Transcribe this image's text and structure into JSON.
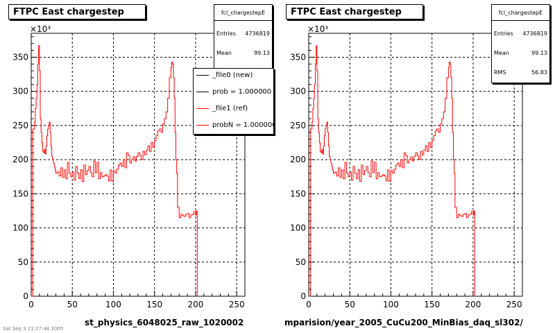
{
  "panels": [
    {
      "title": "FTPC East chargestep",
      "xlabel": "st_physics_6048025_raw_1020002",
      "stats": {
        "name": "fcl_chargestepE",
        "rows": [
          {
            "label": "Entries",
            "value": "4736819"
          },
          {
            "label": "Mean",
            "value": "99.13"
          }
        ]
      },
      "legend": [
        {
          "label": "_file0 (new)",
          "color": "#000000"
        },
        {
          "label": "prob = 1.000000",
          "color": "#000000"
        },
        {
          "label": "_file1 (ref)",
          "color": "#ff0000"
        },
        {
          "label": "probN = 1.000000",
          "color": "#ff0000"
        }
      ]
    },
    {
      "title": "FTPC East chargestep",
      "xlabel": "mparision/year_2005_CuCu200_MinBias_daq_sl302/",
      "stats": {
        "name": "fcl_chargestepE",
        "rows": [
          {
            "label": "Entries",
            "value": "4736819"
          },
          {
            "label": "Mean",
            "value": "99.13"
          },
          {
            "label": "RMS",
            "value": "56.83"
          }
        ]
      }
    }
  ],
  "footer": "Sat Sep 3 11:27:48 2005",
  "chart_data": {
    "type": "line",
    "title": "FTPC East chargestep",
    "y_multiplier": "×10^3",
    "xlim": [
      0,
      260
    ],
    "ylim": [
      0,
      385
    ],
    "x_ticks": [
      0,
      50,
      100,
      150,
      200,
      250
    ],
    "y_ticks": [
      0,
      50,
      100,
      150,
      200,
      250,
      300,
      350
    ],
    "grid": true,
    "line_color": "#ff0000",
    "series": [
      {
        "name": "_file1 (ref)",
        "x": [
          0,
          2,
          4,
          5,
          6,
          7,
          8,
          9,
          10,
          11,
          12,
          13,
          14,
          15,
          16,
          17,
          18,
          19,
          20,
          21,
          22,
          23,
          24,
          25,
          26,
          27,
          28,
          29,
          30,
          32,
          34,
          36,
          38,
          40,
          42,
          44,
          46,
          48,
          50,
          52,
          54,
          56,
          58,
          60,
          62,
          64,
          66,
          68,
          70,
          72,
          74,
          76,
          78,
          80,
          82,
          84,
          86,
          88,
          90,
          92,
          94,
          96,
          98,
          100,
          102,
          104,
          106,
          108,
          110,
          112,
          114,
          116,
          118,
          120,
          122,
          124,
          126,
          128,
          130,
          132,
          134,
          136,
          138,
          140,
          142,
          144,
          146,
          148,
          150,
          152,
          154,
          156,
          158,
          160,
          162,
          164,
          166,
          168,
          170,
          171,
          172,
          173,
          174,
          175,
          176,
          177,
          178,
          180,
          182,
          184,
          186,
          188,
          190,
          192,
          194,
          196,
          198,
          200,
          201,
          202,
          203
        ],
        "y": [
          0,
          245,
          255,
          275,
          290,
          310,
          340,
          367,
          330,
          260,
          240,
          225,
          212,
          210,
          215,
          208,
          220,
          235,
          245,
          250,
          255,
          240,
          220,
          205,
          200,
          195,
          190,
          185,
          180,
          182,
          176,
          188,
          174,
          185,
          172,
          196,
          180,
          175,
          182,
          170,
          190,
          180,
          172,
          185,
          168,
          192,
          178,
          184,
          190,
          181,
          175,
          198,
          181,
          196,
          172,
          181,
          175,
          176,
          178,
          176,
          169,
          185,
          168,
          184,
          180,
          186,
          192,
          195,
          190,
          200,
          188,
          210,
          206,
          195,
          200,
          204,
          198,
          205,
          210,
          206,
          200,
          212,
          207,
          214,
          220,
          212,
          225,
          218,
          228,
          235,
          242,
          245,
          240,
          252,
          260,
          270,
          290,
          320,
          335,
          343,
          340,
          320,
          290,
          240,
          200,
          180,
          130,
          115,
          120,
          118,
          117,
          120,
          121,
          115,
          119,
          120,
          124,
          119,
          125,
          0,
          0
        ]
      }
    ]
  }
}
